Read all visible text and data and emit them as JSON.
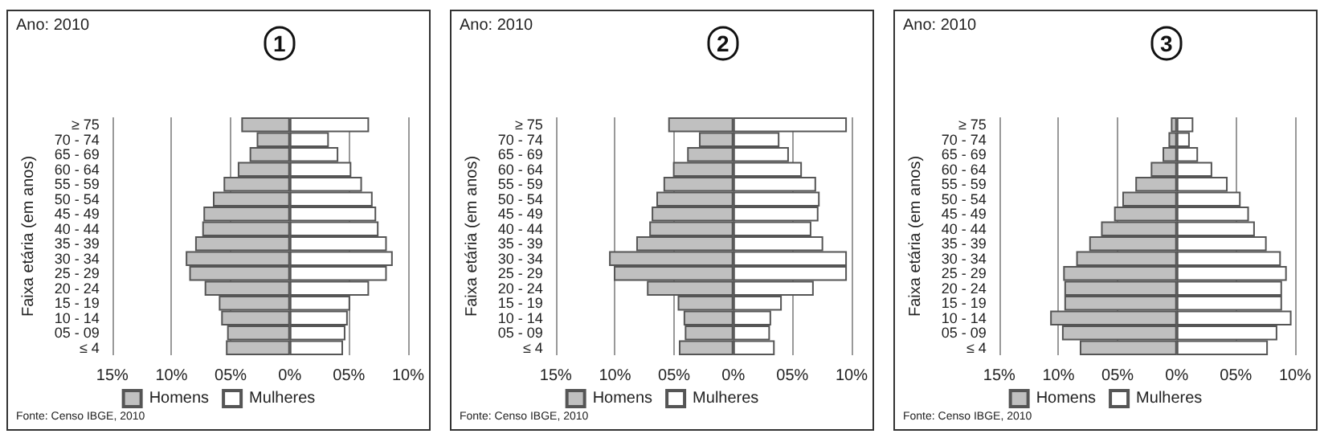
{
  "chart_data": [
    {
      "type": "bar",
      "orientation": "horizontal",
      "stacked": true,
      "title": "1",
      "ylabel": "Faixa etária (em anos)",
      "annotations": [
        "Ano: 2010",
        "Fonte: Censo IBGE, 2010"
      ],
      "categories": [
        "≥ 75",
        "70 - 74",
        "65 - 69",
        "60 - 64",
        "55 - 59",
        "50 - 54",
        "45 - 49",
        "40 - 44",
        "35 - 39",
        "30 - 34",
        "25 - 29",
        "20 - 24",
        "15 - 19",
        "10 - 14",
        "05 - 09",
        "≤ 4"
      ],
      "series": [
        {
          "name": "Homens",
          "color": "#c0c0c0",
          "values": [
            -4.1,
            -2.8,
            -3.4,
            -4.4,
            -5.6,
            -6.5,
            -7.3,
            -7.4,
            -8.0,
            -8.8,
            -8.5,
            -7.2,
            -6.0,
            -5.8,
            -5.3,
            -5.4
          ]
        },
        {
          "name": "Mulheres",
          "color": "#ffffff",
          "values": [
            6.7,
            3.3,
            4.1,
            5.2,
            6.1,
            7.0,
            7.3,
            7.5,
            8.2,
            8.7,
            8.2,
            6.7,
            5.1,
            4.9,
            4.7,
            4.5
          ]
        }
      ],
      "xlim": [
        -15,
        10
      ],
      "xticks": [
        {
          "value": -15,
          "label": "15%"
        },
        {
          "value": -10,
          "label": "10%"
        },
        {
          "value": -5,
          "label": "05%"
        },
        {
          "value": 0,
          "label": "0%"
        },
        {
          "value": 5,
          "label": "05%"
        },
        {
          "value": 10,
          "label": "10%"
        }
      ],
      "grid": "x",
      "legend": "bottom"
    },
    {
      "type": "bar",
      "orientation": "horizontal",
      "stacked": true,
      "title": "2",
      "ylabel": "Faixa etária (em anos)",
      "annotations": [
        "Ano: 2010",
        "Fonte: Censo IBGE, 2010"
      ],
      "categories": [
        "≥ 75",
        "70 - 74",
        "65 - 69",
        "60 - 64",
        "55 - 59",
        "50 - 54",
        "45 - 49",
        "40 - 44",
        "35 - 39",
        "30 - 34",
        "25 - 29",
        "20 - 24",
        "15 - 19",
        "10 - 14",
        "05 - 09",
        "≤ 4"
      ],
      "series": [
        {
          "name": "Homens",
          "color": "#c0c0c0",
          "values": [
            -5.5,
            -2.9,
            -3.9,
            -5.1,
            -5.9,
            -6.5,
            -6.9,
            -7.1,
            -8.2,
            -10.5,
            -10.1,
            -7.3,
            -4.7,
            -4.2,
            -4.1,
            -4.6
          ]
        },
        {
          "name": "Mulheres",
          "color": "#ffffff",
          "values": [
            9.6,
            3.9,
            4.7,
            5.8,
            7.0,
            7.3,
            7.2,
            6.6,
            7.6,
            9.6,
            9.6,
            6.8,
            4.1,
            3.2,
            3.1,
            3.5
          ]
        }
      ],
      "xlim": [
        -15,
        10
      ],
      "xticks": [
        {
          "value": -15,
          "label": "15%"
        },
        {
          "value": -10,
          "label": "10%"
        },
        {
          "value": -5,
          "label": "05%"
        },
        {
          "value": 0,
          "label": "0%"
        },
        {
          "value": 5,
          "label": "05%"
        },
        {
          "value": 10,
          "label": "10%"
        }
      ],
      "grid": "x",
      "legend": "bottom"
    },
    {
      "type": "bar",
      "orientation": "horizontal",
      "stacked": true,
      "title": "3",
      "ylabel": "Faixa etária (em anos)",
      "annotations": [
        "Ano: 2010",
        "Fonte: Censo IBGE, 2010"
      ],
      "categories": [
        "≥ 75",
        "70 - 74",
        "65 - 69",
        "60 - 64",
        "55 - 59",
        "50 - 54",
        "45 - 49",
        "40 - 44",
        "35 - 39",
        "30 - 34",
        "25 - 29",
        "20 - 24",
        "15 - 19",
        "10 - 14",
        "05 - 09",
        "≤ 4"
      ],
      "series": [
        {
          "name": "Homens",
          "color": "#c0c0c0",
          "values": [
            -0.5,
            -0.7,
            -1.2,
            -2.2,
            -3.5,
            -4.6,
            -5.3,
            -6.4,
            -7.4,
            -8.5,
            -9.6,
            -9.5,
            -9.5,
            -10.7,
            -9.7,
            -8.2
          ]
        },
        {
          "name": "Mulheres",
          "color": "#ffffff",
          "values": [
            1.4,
            1.1,
            1.8,
            3.0,
            4.3,
            5.4,
            6.1,
            6.6,
            7.6,
            8.8,
            9.3,
            8.9,
            8.9,
            9.7,
            8.5,
            7.7
          ]
        }
      ],
      "xlim": [
        -15,
        10
      ],
      "xticks": [
        {
          "value": -15,
          "label": "15%"
        },
        {
          "value": -10,
          "label": "10%"
        },
        {
          "value": -5,
          "label": "05%"
        },
        {
          "value": 0,
          "label": "0%"
        },
        {
          "value": 5,
          "label": "05%"
        },
        {
          "value": 10,
          "label": "10%"
        }
      ],
      "grid": "x",
      "legend": "bottom"
    }
  ]
}
